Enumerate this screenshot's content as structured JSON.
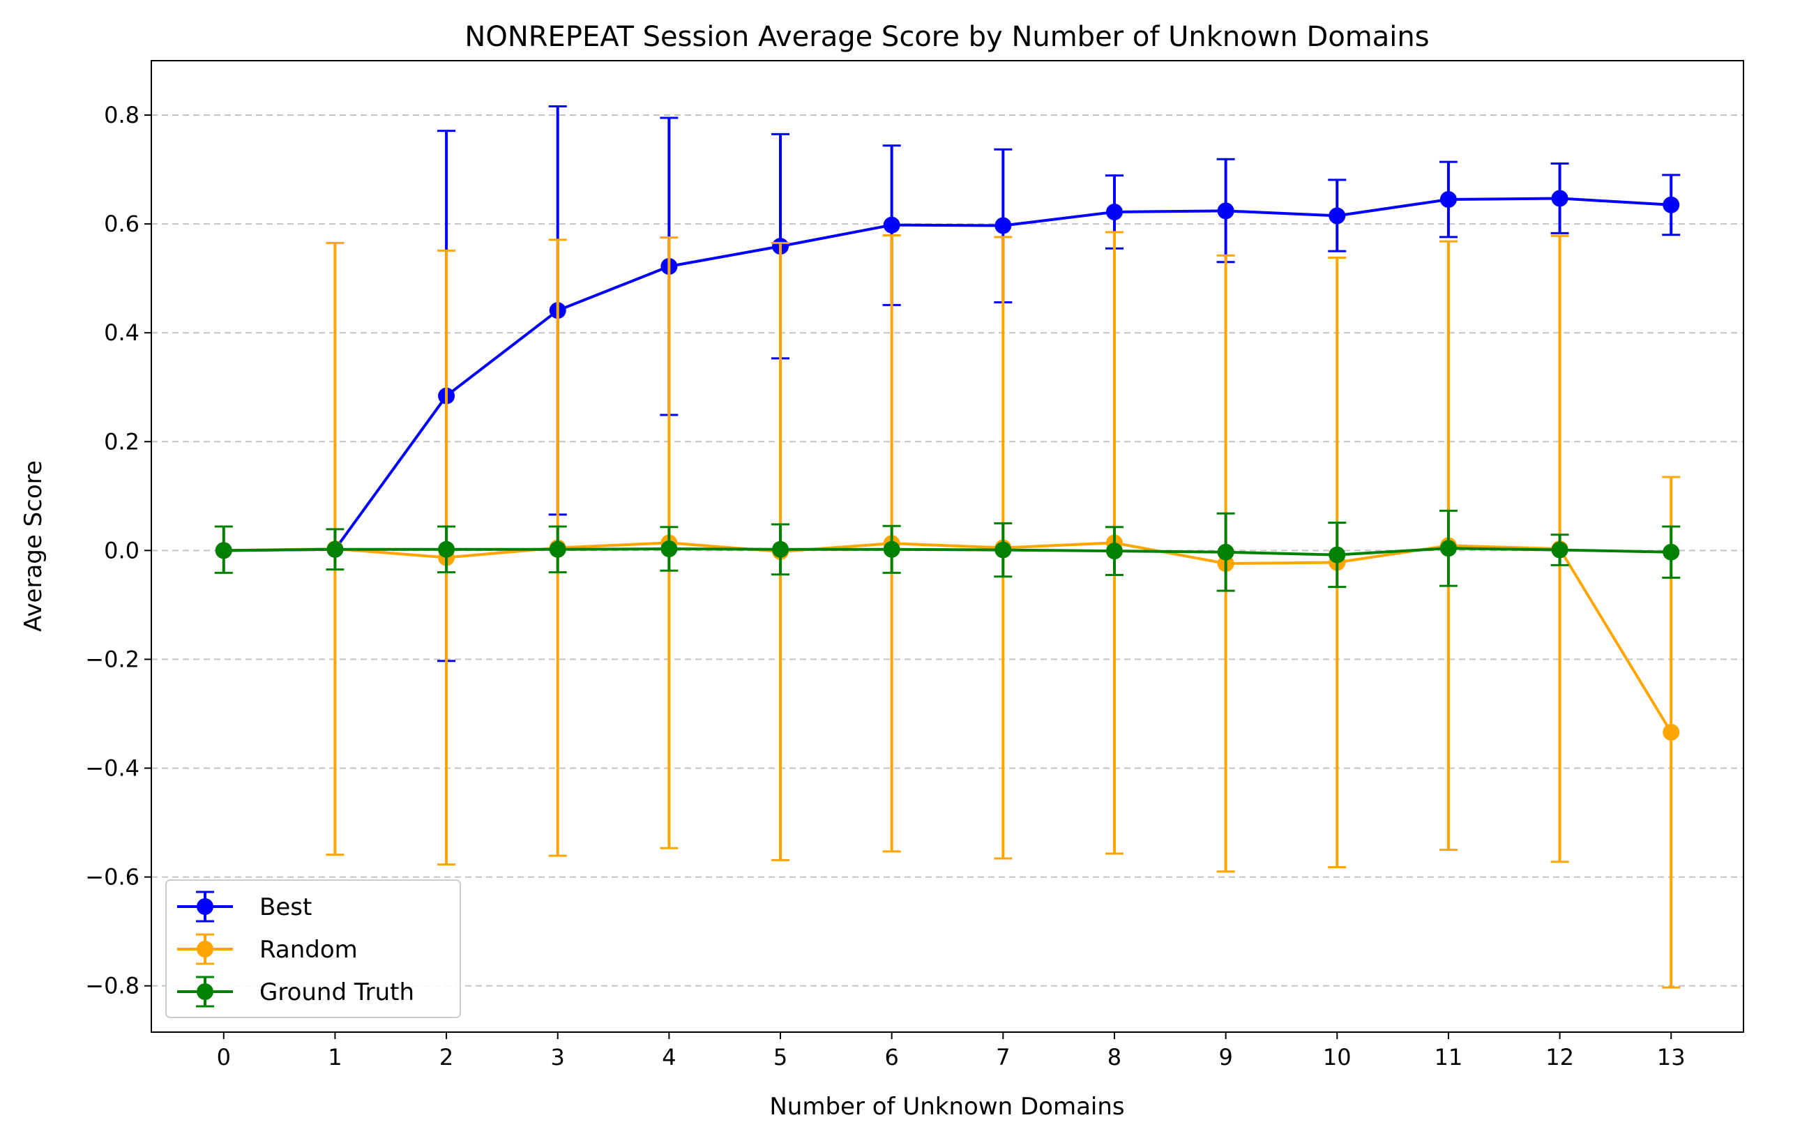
{
  "chart_data": {
    "type": "line",
    "title": "NONREPEAT Session Average Score by Number of Unknown Domains",
    "xlabel": "Number of Unknown Domains",
    "ylabel": "Average Score",
    "x": [
      0,
      1,
      2,
      3,
      4,
      5,
      6,
      7,
      8,
      9,
      10,
      11,
      12,
      13
    ],
    "xticks": [
      "0",
      "1",
      "2",
      "3",
      "4",
      "5",
      "6",
      "7",
      "8",
      "9",
      "10",
      "11",
      "12",
      "13"
    ],
    "xlim": [
      -0.65,
      13.65
    ],
    "yticks": [
      -0.8,
      -0.6,
      -0.4,
      -0.2,
      0.0,
      0.2,
      0.4,
      0.6,
      0.8
    ],
    "ytick_labels": [
      "−0.8",
      "−0.6",
      "−0.4",
      "−0.2",
      "0.0",
      "0.2",
      "0.4",
      "0.6",
      "0.8"
    ],
    "ylim": [
      -0.885,
      0.9
    ],
    "grid": "y-dashed",
    "legend_position": "lower-left",
    "series": [
      {
        "name": "Best",
        "color": "#0000ff",
        "values": [
          0.0,
          0.002,
          0.284,
          0.441,
          0.522,
          0.559,
          0.598,
          0.597,
          0.622,
          0.624,
          0.615,
          0.645,
          0.647,
          0.635
        ],
        "err_low": [
          null,
          null,
          -0.203,
          0.066,
          0.249,
          0.353,
          0.451,
          0.456,
          0.555,
          0.53,
          0.55,
          0.576,
          0.583,
          0.58
        ],
        "err_high": [
          null,
          null,
          0.771,
          0.816,
          0.795,
          0.765,
          0.744,
          0.737,
          0.689,
          0.719,
          0.681,
          0.714,
          0.711,
          0.69
        ]
      },
      {
        "name": "Random",
        "color": "#ffa500",
        "values": [
          0.0,
          0.003,
          -0.013,
          0.005,
          0.014,
          -0.002,
          0.013,
          0.005,
          0.014,
          -0.024,
          -0.022,
          0.009,
          0.003,
          -0.334
        ],
        "err_low": [
          null,
          -0.559,
          -0.577,
          -0.561,
          -0.547,
          -0.569,
          -0.553,
          -0.566,
          -0.557,
          -0.59,
          -0.582,
          -0.55,
          -0.572,
          -0.803
        ],
        "err_high": [
          null,
          0.565,
          0.551,
          0.571,
          0.575,
          0.565,
          0.579,
          0.576,
          0.585,
          0.542,
          0.538,
          0.568,
          0.578,
          0.135
        ]
      },
      {
        "name": "Ground Truth",
        "color": "#008000",
        "values": [
          0.0,
          0.002,
          0.002,
          0.002,
          0.003,
          0.002,
          0.002,
          0.001,
          -0.001,
          -0.003,
          -0.008,
          0.004,
          0.001,
          -0.003
        ],
        "err_low": [
          -0.041,
          -0.035,
          -0.04,
          -0.04,
          -0.037,
          -0.044,
          -0.041,
          -0.048,
          -0.045,
          -0.074,
          -0.067,
          -0.065,
          -0.027,
          -0.05
        ],
        "err_high": [
          0.044,
          0.039,
          0.044,
          0.044,
          0.043,
          0.048,
          0.045,
          0.05,
          0.043,
          0.068,
          0.051,
          0.073,
          0.029,
          0.044
        ]
      }
    ]
  }
}
